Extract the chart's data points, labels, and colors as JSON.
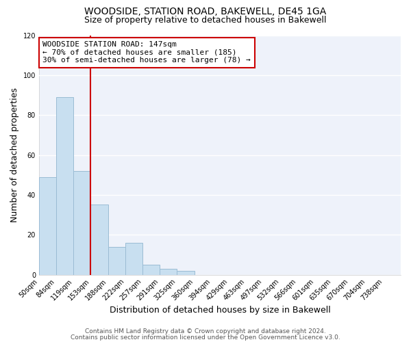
{
  "title": "WOODSIDE, STATION ROAD, BAKEWELL, DE45 1GA",
  "subtitle": "Size of property relative to detached houses in Bakewell",
  "xlabel": "Distribution of detached houses by size in Bakewell",
  "ylabel": "Number of detached properties",
  "bin_labels": [
    "50sqm",
    "84sqm",
    "119sqm",
    "153sqm",
    "188sqm",
    "222sqm",
    "257sqm",
    "291sqm",
    "325sqm",
    "360sqm",
    "394sqm",
    "429sqm",
    "463sqm",
    "497sqm",
    "532sqm",
    "566sqm",
    "601sqm",
    "635sqm",
    "670sqm",
    "704sqm",
    "738sqm"
  ],
  "bar_heights": [
    49,
    89,
    52,
    35,
    14,
    16,
    5,
    3,
    2,
    0,
    0,
    0,
    0,
    0,
    0,
    0,
    0,
    0,
    0,
    0,
    0
  ],
  "bar_color": "#c8dff0",
  "bar_edge_color": "#9bbcd4",
  "bin_edges": [
    50,
    84,
    119,
    153,
    188,
    222,
    257,
    291,
    325,
    360,
    394,
    429,
    463,
    497,
    532,
    566,
    601,
    635,
    670,
    704,
    738,
    772
  ],
  "annotation_line1": "WOODSIDE STATION ROAD: 147sqm",
  "annotation_line2": "← 70% of detached houses are smaller (185)",
  "annotation_line3": "30% of semi-detached houses are larger (78) →",
  "annotation_box_color": "#ffffff",
  "annotation_box_edge_color": "#cc0000",
  "vline_color": "#cc0000",
  "vline_x_bin_index": 3,
  "ylim": [
    0,
    120
  ],
  "yticks": [
    0,
    20,
    40,
    60,
    80,
    100,
    120
  ],
  "footer_line1": "Contains HM Land Registry data © Crown copyright and database right 2024.",
  "footer_line2": "Contains public sector information licensed under the Open Government Licence v3.0.",
  "background_color": "#ffffff",
  "plot_bg_color": "#eef2fa",
  "grid_color": "#ffffff",
  "title_fontsize": 10,
  "subtitle_fontsize": 9,
  "axis_label_fontsize": 9,
  "tick_fontsize": 7,
  "annotation_fontsize": 8,
  "footer_fontsize": 6.5
}
